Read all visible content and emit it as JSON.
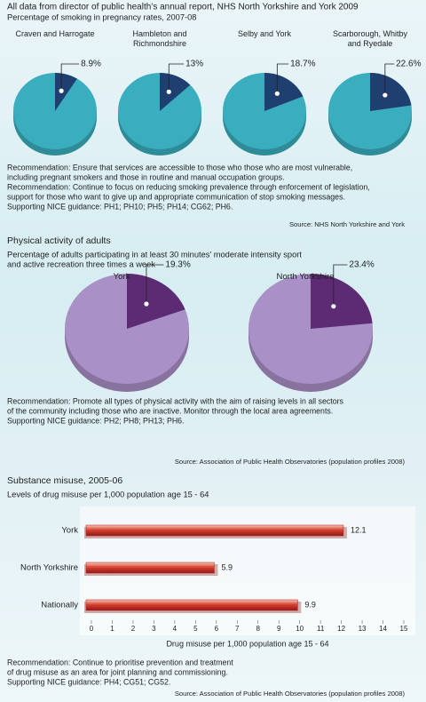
{
  "header": {
    "title": "All data from director of public health’s annual report, NHS North Yorkshire and York 2009"
  },
  "chart_data": [
    {
      "type": "pie",
      "title": [
        "Percentage of smoking in pregnancy rates, 2007-08"
      ],
      "categories": [
        "Craven and Harrogate",
        "Hambleton and Richmondshire",
        "Selby and York",
        "Scarborough, Whitby and Ryedale"
      ],
      "values": [
        8.9,
        13,
        18.7,
        22.6
      ],
      "value_labels": [
        "8.9%",
        "13%",
        "18.7%",
        "22.6%"
      ],
      "colors": {
        "slice": "#1e3f70",
        "rest": "#3aaebe"
      },
      "notes": [
        "Recommendation: Ensure that services are accessible to those who those who are most vulnerable,",
        "including pregnant smokers and those in routine and manual occupation groups.",
        "Recommendation: Continue to focus on reducing smoking prevalence through enforcement of legislation,",
        "support for those who want to give up and appropriate communication of stop smoking messages.",
        "Supporting NICE guidance:  PH1; PH10; PH5; PH14; CG62; PH6."
      ],
      "source": "Source: NHS North Yorkshire and York"
    },
    {
      "type": "pie",
      "heading": "Physical activity of adults",
      "title": [
        "Percentage of adults participating in at least 30 minutes’ moderate intensity sport",
        "and active recreation three times a week"
      ],
      "categories": [
        "York",
        "North Yorkshire"
      ],
      "values": [
        19.3,
        23.4
      ],
      "value_labels": [
        "19.3%",
        "23.4%"
      ],
      "colors": {
        "slice": "#5c2b74",
        "rest": "#a990c6"
      },
      "notes": [
        "Recommendation: Promote all types of physical activity with the aim of raising levels in all sectors",
        "of the community including those who are inactive. Monitor through the local area agreements.",
        "Supporting NICE guidance:  PH2; PH8; PH13; PH6."
      ],
      "source": "Source: Association of Public Health Observatories (population profiles 2008)"
    },
    {
      "type": "bar",
      "heading": "Substance misuse, 2005-06",
      "title": [
        "Levels of drug misuse per 1,000 population age 15 - 64"
      ],
      "categories": [
        "York",
        "North Yorkshire",
        "Nationally"
      ],
      "values": [
        12.1,
        5.9,
        9.9
      ],
      "color": "#c0282a",
      "xlabel": "Drug misuse per 1,000 population age 15 - 64",
      "xlim": [
        0,
        15
      ],
      "xticks": [
        0,
        1,
        2,
        3,
        4,
        5,
        6,
        7,
        8,
        9,
        10,
        11,
        12,
        13,
        14,
        15
      ],
      "notes": [
        "Recommendation: Continue to prioritise prevention and treatment",
        "of drug misuse as an area for joint planning and commissioning.",
        "Supporting NICE guidance: PH4; CG51; CG52."
      ],
      "source": "Source: Association of Public Health Observatories (population profiles 2008)"
    }
  ]
}
